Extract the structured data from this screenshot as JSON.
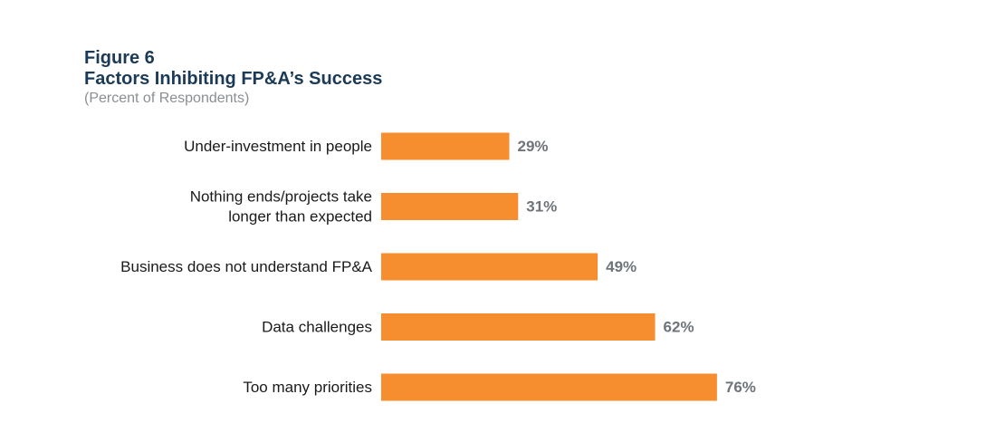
{
  "figure": {
    "label": "Figure 6",
    "title": "Factors Inhibiting FP&A’s Success",
    "subtitle": "(Percent of Respondents)"
  },
  "colors": {
    "bar": "#f68d2e",
    "title": "#1b3a57",
    "subtitle": "#8a8f94",
    "value_label": "#6e747a"
  },
  "chart_data": {
    "type": "bar",
    "orientation": "horizontal",
    "categories": [
      [
        "Under-investment in people"
      ],
      [
        "Nothing ends/projects take",
        "longer than expected"
      ],
      [
        "Business does not understand FP&A"
      ],
      [
        "Data challenges"
      ],
      [
        "Too many priorities"
      ]
    ],
    "values": [
      29,
      31,
      49,
      62,
      76
    ],
    "value_labels": [
      "29%",
      "31%",
      "49%",
      "62%",
      "76%"
    ],
    "unit": "%",
    "xlim": [
      0,
      100
    ],
    "grid": false
  }
}
